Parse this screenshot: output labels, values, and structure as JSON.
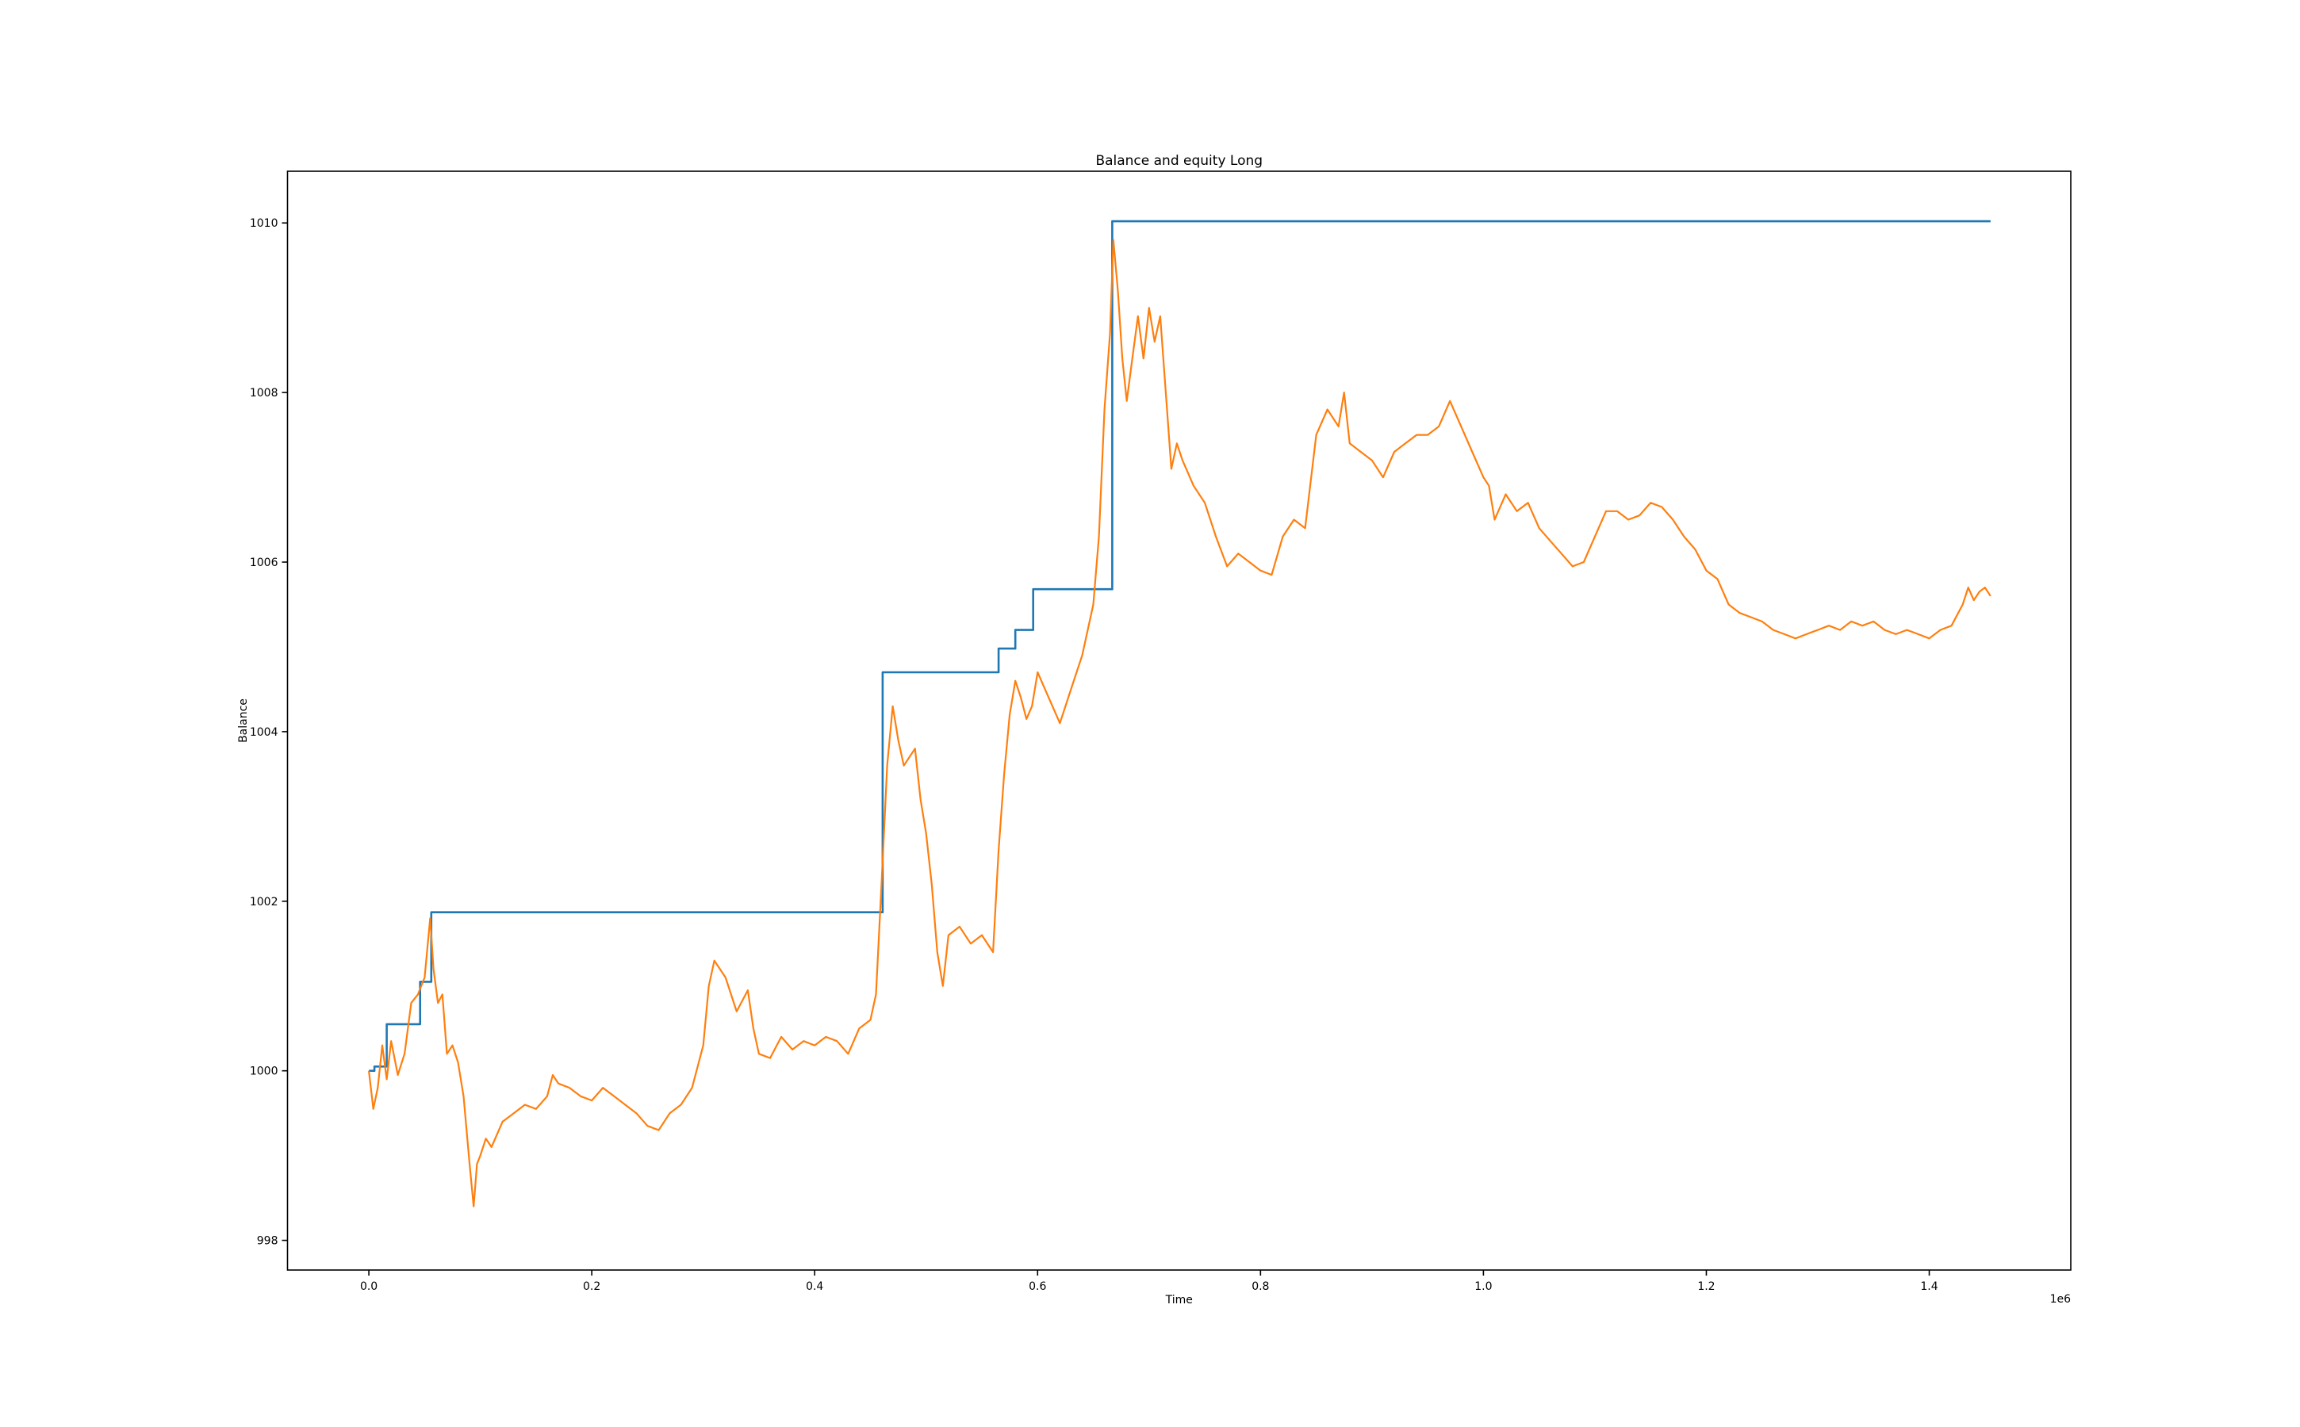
{
  "chart_data": {
    "type": "line",
    "title": "Balance and equity Long",
    "xlabel": "Time",
    "ylabel": "Balance",
    "x_offset_label": "1e6",
    "xlim": [
      -0.073,
      1.527
    ],
    "ylim": [
      997.65,
      1010.61
    ],
    "x_ticks": [
      0.0,
      0.2,
      0.4,
      0.6,
      0.8,
      1.0,
      1.2,
      1.4
    ],
    "x_tick_labels": [
      "0.0",
      "0.2",
      "0.4",
      "0.6",
      "0.8",
      "1.0",
      "1.2",
      "1.4"
    ],
    "y_ticks": [
      998,
      1000,
      1002,
      1004,
      1006,
      1008,
      1010
    ],
    "y_tick_labels": [
      "998",
      "1000",
      "1002",
      "1004",
      "1006",
      "1008",
      "1010"
    ],
    "grid": false,
    "legend": "none",
    "series": [
      {
        "color": "#1f77b4",
        "kind": "step",
        "x": [
          0.0,
          0.005,
          0.016,
          0.037,
          0.046,
          0.056,
          0.461,
          0.565,
          0.58,
          0.596,
          0.667,
          1.455
        ],
        "y": [
          1000.0,
          1000.05,
          1000.55,
          1000.55,
          1001.05,
          1001.87,
          1004.7,
          1004.98,
          1005.2,
          1005.68,
          1010.02,
          1010.02
        ]
      },
      {
        "color": "#ff7f0e",
        "kind": "line",
        "x": [
          0.0,
          0.004,
          0.008,
          0.012,
          0.016,
          0.02,
          0.026,
          0.032,
          0.038,
          0.044,
          0.05,
          0.055,
          0.058,
          0.062,
          0.066,
          0.07,
          0.075,
          0.08,
          0.085,
          0.09,
          0.094,
          0.097,
          0.1,
          0.105,
          0.11,
          0.12,
          0.13,
          0.14,
          0.15,
          0.16,
          0.165,
          0.17,
          0.18,
          0.19,
          0.2,
          0.21,
          0.22,
          0.23,
          0.24,
          0.25,
          0.26,
          0.27,
          0.28,
          0.29,
          0.3,
          0.305,
          0.31,
          0.32,
          0.33,
          0.34,
          0.345,
          0.35,
          0.36,
          0.37,
          0.38,
          0.39,
          0.4,
          0.41,
          0.42,
          0.43,
          0.44,
          0.45,
          0.455,
          0.46,
          0.465,
          0.47,
          0.475,
          0.48,
          0.49,
          0.495,
          0.5,
          0.505,
          0.51,
          0.515,
          0.52,
          0.53,
          0.54,
          0.55,
          0.56,
          0.565,
          0.57,
          0.575,
          0.58,
          0.585,
          0.59,
          0.595,
          0.6,
          0.61,
          0.62,
          0.63,
          0.64,
          0.645,
          0.65,
          0.655,
          0.66,
          0.665,
          0.668,
          0.672,
          0.676,
          0.68,
          0.685,
          0.69,
          0.695,
          0.7,
          0.705,
          0.71,
          0.715,
          0.72,
          0.725,
          0.73,
          0.74,
          0.75,
          0.76,
          0.77,
          0.78,
          0.79,
          0.8,
          0.81,
          0.82,
          0.83,
          0.84,
          0.85,
          0.86,
          0.87,
          0.875,
          0.88,
          0.89,
          0.9,
          0.91,
          0.92,
          0.93,
          0.94,
          0.95,
          0.96,
          0.97,
          0.98,
          0.99,
          1.0,
          1.005,
          1.01,
          1.02,
          1.03,
          1.04,
          1.05,
          1.06,
          1.07,
          1.08,
          1.09,
          1.1,
          1.11,
          1.12,
          1.13,
          1.14,
          1.15,
          1.16,
          1.17,
          1.18,
          1.19,
          1.2,
          1.21,
          1.22,
          1.23,
          1.24,
          1.25,
          1.26,
          1.27,
          1.28,
          1.29,
          1.3,
          1.31,
          1.32,
          1.33,
          1.34,
          1.35,
          1.36,
          1.37,
          1.38,
          1.39,
          1.4,
          1.41,
          1.42,
          1.43,
          1.435,
          1.44,
          1.445,
          1.45,
          1.455
        ],
        "y": [
          1000.0,
          999.55,
          999.8,
          1000.3,
          999.9,
          1000.35,
          999.95,
          1000.2,
          1000.8,
          1000.9,
          1001.1,
          1001.8,
          1001.2,
          1000.8,
          1000.9,
          1000.2,
          1000.3,
          1000.1,
          999.7,
          998.95,
          998.4,
          998.9,
          999.0,
          999.2,
          999.1,
          999.4,
          999.5,
          999.6,
          999.55,
          999.7,
          999.95,
          999.85,
          999.8,
          999.7,
          999.65,
          999.8,
          999.7,
          999.6,
          999.5,
          999.35,
          999.3,
          999.5,
          999.6,
          999.8,
          1000.3,
          1001.0,
          1001.3,
          1001.1,
          1000.7,
          1000.95,
          1000.5,
          1000.2,
          1000.15,
          1000.4,
          1000.25,
          1000.35,
          1000.3,
          1000.4,
          1000.35,
          1000.2,
          1000.5,
          1000.6,
          1000.9,
          1002.2,
          1003.6,
          1004.3,
          1003.9,
          1003.6,
          1003.8,
          1003.2,
          1002.8,
          1002.2,
          1001.4,
          1001.0,
          1001.6,
          1001.7,
          1001.5,
          1001.6,
          1001.4,
          1002.6,
          1003.5,
          1004.2,
          1004.6,
          1004.4,
          1004.15,
          1004.3,
          1004.7,
          1004.4,
          1004.1,
          1004.5,
          1004.9,
          1005.2,
          1005.5,
          1006.3,
          1007.8,
          1008.7,
          1009.8,
          1009.2,
          1008.4,
          1007.9,
          1008.4,
          1008.9,
          1008.4,
          1009.0,
          1008.6,
          1008.9,
          1008.0,
          1007.1,
          1007.4,
          1007.2,
          1006.9,
          1006.7,
          1006.3,
          1005.95,
          1006.1,
          1006.0,
          1005.9,
          1005.85,
          1006.3,
          1006.5,
          1006.4,
          1007.5,
          1007.8,
          1007.6,
          1008.0,
          1007.4,
          1007.3,
          1007.2,
          1007.0,
          1007.3,
          1007.4,
          1007.5,
          1007.5,
          1007.6,
          1007.9,
          1007.6,
          1007.3,
          1007.0,
          1006.9,
          1006.5,
          1006.8,
          1006.6,
          1006.7,
          1006.4,
          1006.25,
          1006.1,
          1005.95,
          1006.0,
          1006.3,
          1006.6,
          1006.6,
          1006.5,
          1006.55,
          1006.7,
          1006.65,
          1006.5,
          1006.3,
          1006.15,
          1005.9,
          1005.8,
          1005.5,
          1005.4,
          1005.35,
          1005.3,
          1005.2,
          1005.15,
          1005.1,
          1005.15,
          1005.2,
          1005.25,
          1005.2,
          1005.3,
          1005.25,
          1005.3,
          1005.2,
          1005.15,
          1005.2,
          1005.15,
          1005.1,
          1005.2,
          1005.25,
          1005.5,
          1005.7,
          1005.55,
          1005.65,
          1005.7,
          1005.6
        ]
      }
    ]
  }
}
